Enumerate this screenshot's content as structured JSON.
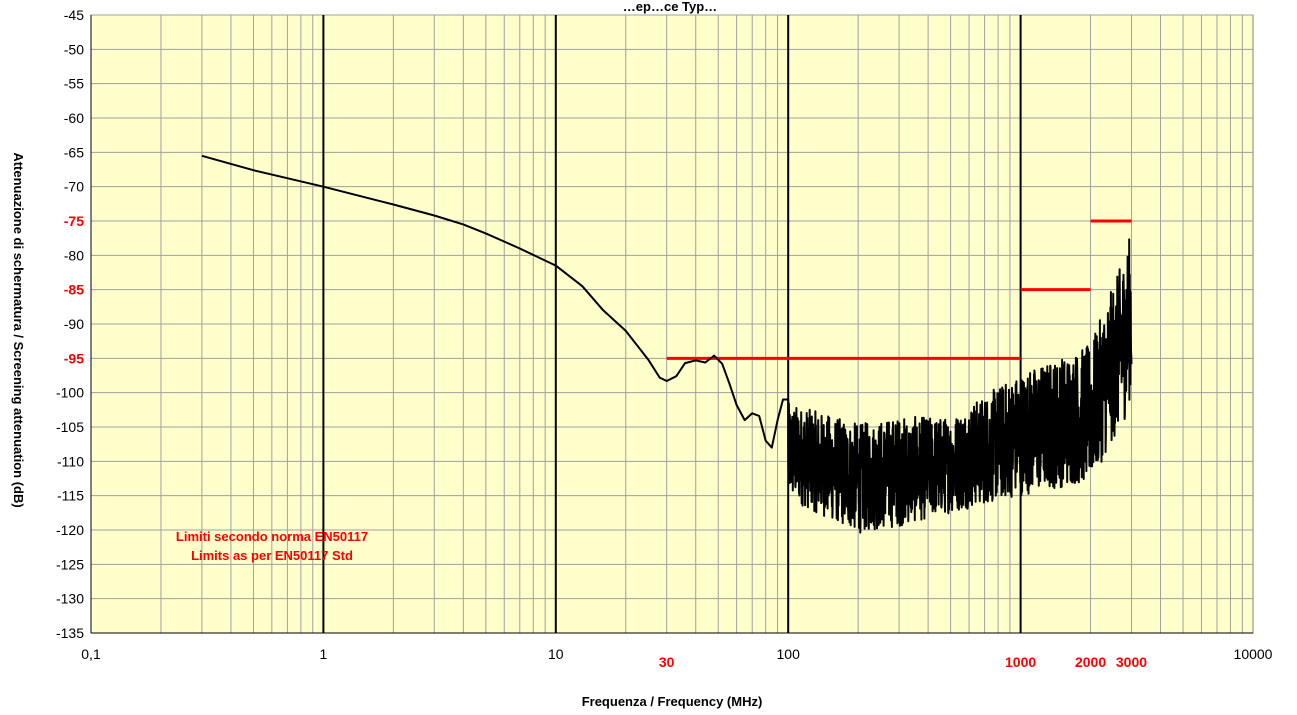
{
  "chart_data": {
    "type": "line",
    "title": "…ep…ce Typ…",
    "xlabel": "Frequenza / Frequency (MHz)",
    "ylabel": "Attenuazione di schermatura / Screening attenuation (dB)",
    "x_scale": "log",
    "xlim": [
      0.1,
      10000
    ],
    "ylim": [
      -135,
      -45
    ],
    "grid": true,
    "plot_background": "#ffffcc",
    "x_ticks": [
      {
        "value": 0.1,
        "label": "0,1",
        "color": "#000000"
      },
      {
        "value": 1,
        "label": "1",
        "color": "#000000"
      },
      {
        "value": 10,
        "label": "10",
        "color": "#000000"
      },
      {
        "value": 30,
        "label": "30",
        "color": "#ff0000"
      },
      {
        "value": 100,
        "label": "100",
        "color": "#000000"
      },
      {
        "value": 1000,
        "label": "1000",
        "color": "#ff0000"
      },
      {
        "value": 2000,
        "label": "2000",
        "color": "#ff0000"
      },
      {
        "value": 3000,
        "label": "3000",
        "color": "#ff0000"
      },
      {
        "value": 10000,
        "label": "10000",
        "color": "#000000"
      }
    ],
    "y_ticks": [
      {
        "value": -45,
        "label": "-45",
        "color": "#000000"
      },
      {
        "value": -50,
        "label": "-50",
        "color": "#000000"
      },
      {
        "value": -55,
        "label": "-55",
        "color": "#000000"
      },
      {
        "value": -60,
        "label": "-60",
        "color": "#000000"
      },
      {
        "value": -65,
        "label": "-65",
        "color": "#000000"
      },
      {
        "value": -70,
        "label": "-70",
        "color": "#000000"
      },
      {
        "value": -75,
        "label": "-75",
        "color": "#ff0000"
      },
      {
        "value": -80,
        "label": "-80",
        "color": "#000000"
      },
      {
        "value": -85,
        "label": "-85",
        "color": "#ff0000"
      },
      {
        "value": -90,
        "label": "-90",
        "color": "#000000"
      },
      {
        "value": -95,
        "label": "-95",
        "color": "#ff0000"
      },
      {
        "value": -100,
        "label": "-100",
        "color": "#000000"
      },
      {
        "value": -105,
        "label": "-105",
        "color": "#000000"
      },
      {
        "value": -110,
        "label": "-110",
        "color": "#000000"
      },
      {
        "value": -115,
        "label": "-115",
        "color": "#000000"
      },
      {
        "value": -120,
        "label": "-120",
        "color": "#000000"
      },
      {
        "value": -125,
        "label": "-125",
        "color": "#000000"
      },
      {
        "value": -130,
        "label": "-130",
        "color": "#000000"
      },
      {
        "value": -135,
        "label": "-135",
        "color": "#000000"
      }
    ],
    "limit_lines": [
      {
        "x_start": 30,
        "x_end": 1000,
        "y": -95
      },
      {
        "x_start": 1000,
        "x_end": 2000,
        "y": -85
      },
      {
        "x_start": 2000,
        "x_end": 3000,
        "y": -75
      }
    ],
    "annotation": [
      "Limiti secondo norma EN50117",
      "Limits as per EN50117 Std"
    ],
    "series": [
      {
        "color": "#000000",
        "smooth": [
          [
            0.3,
            -65.5
          ],
          [
            0.5,
            -67.6
          ],
          [
            1,
            -70
          ],
          [
            2,
            -72.6
          ],
          [
            3,
            -74.2
          ],
          [
            4,
            -75.5
          ],
          [
            5,
            -76.8
          ],
          [
            7,
            -79
          ],
          [
            10,
            -81.5
          ],
          [
            13,
            -84.5
          ],
          [
            16,
            -88
          ],
          [
            20,
            -91
          ],
          [
            25,
            -95.2
          ],
          [
            28,
            -97.8
          ],
          [
            30,
            -98.3
          ],
          [
            33,
            -97.6
          ],
          [
            36,
            -95.7
          ],
          [
            40,
            -95.3
          ],
          [
            44,
            -95.6
          ],
          [
            48,
            -94.6
          ],
          [
            52,
            -95.8
          ],
          [
            56,
            -98.8
          ],
          [
            60,
            -101.8
          ],
          [
            65,
            -104
          ],
          [
            70,
            -103
          ],
          [
            75,
            -103.4
          ],
          [
            80,
            -107
          ],
          [
            85,
            -108
          ],
          [
            90,
            -104
          ],
          [
            95,
            -101
          ],
          [
            100,
            -101
          ]
        ],
        "noise": [
          {
            "x": 100,
            "y": -108.5,
            "amp": 7
          },
          {
            "x": 200,
            "y": -112.5,
            "amp": 8
          },
          {
            "x": 300,
            "y": -111.5,
            "amp": 8
          },
          {
            "x": 500,
            "y": -110.5,
            "amp": 7
          },
          {
            "x": 1000,
            "y": -106,
            "amp": 9
          },
          {
            "x": 2000,
            "y": -103,
            "amp": 10
          },
          {
            "x": 2800,
            "y": -92,
            "amp": 12
          },
          {
            "x": 3000,
            "y": -88,
            "amp": 12
          }
        ]
      }
    ]
  }
}
